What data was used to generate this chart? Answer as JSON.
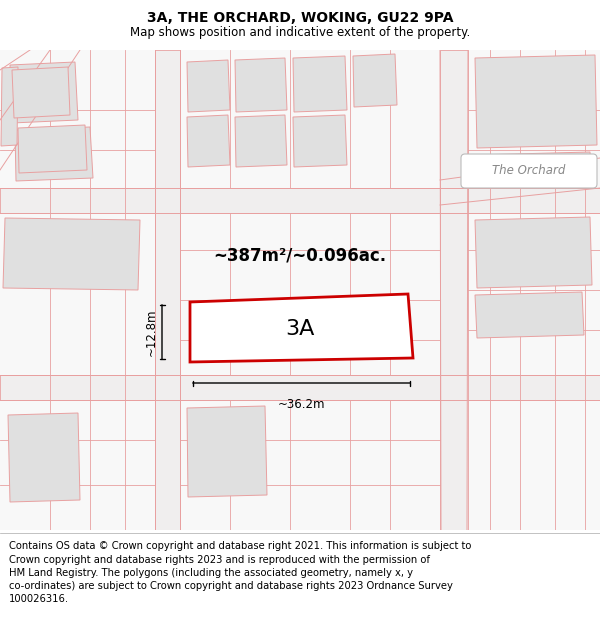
{
  "title": "3A, THE ORCHARD, WOKING, GU22 9PA",
  "subtitle": "Map shows position and indicative extent of the property.",
  "footer": "Contains OS data © Crown copyright and database right 2021. This information is subject to\nCrown copyright and database rights 2023 and is reproduced with the permission of\nHM Land Registry. The polygons (including the associated geometry, namely x, y\nco-ordinates) are subject to Crown copyright and database rights 2023 Ordnance Survey\n100026316.",
  "bg_color": "#f5f5f5",
  "plot_outline_color": "#cc0000",
  "building_fill": "#e0e0e0",
  "line_color": "#e8a0a0",
  "area_text": "~387m²/~0.096ac.",
  "label_3A": "3A",
  "dim_width": "~36.2m",
  "dim_height": "~12.8m",
  "road_label": "The Orchard",
  "title_fontsize": 10,
  "subtitle_fontsize": 8.5,
  "footer_fontsize": 7.2
}
